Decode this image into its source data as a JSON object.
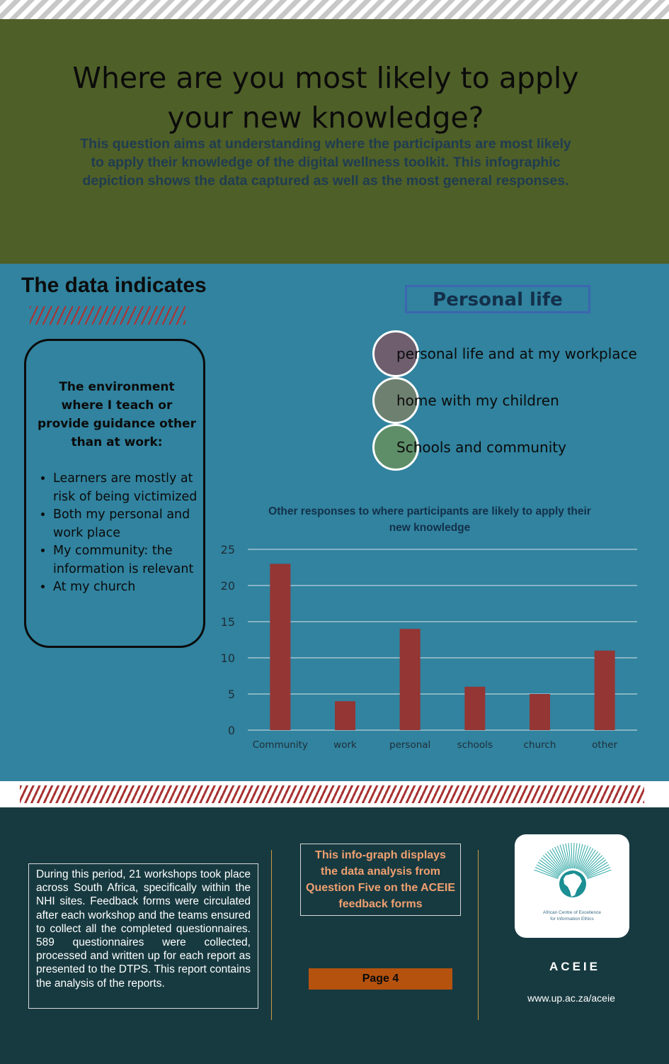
{
  "header": {
    "title": "Where are you most likely to apply your new knowledge?",
    "subtitle": "This question aims at understanding where the participants are most likely to apply their knowledge of the digital wellness toolkit. This infographic depiction shows the data captured as well as the most general responses."
  },
  "data_section": {
    "heading": "The data indicates",
    "box_heading": "The environment where I teach or provide guidance other than at work:",
    "box_items": [
      "Learners are mostly at risk of being victimized",
      "Both my personal and work place",
      "My community: the information is relevant",
      "At my church"
    ]
  },
  "personal_life": {
    "title": "Personal life",
    "items": [
      {
        "label": "personal life and at my workplace",
        "color": "#6e5e6e"
      },
      {
        "label": "home with my children",
        "color": "#6e8070"
      },
      {
        "label": "Schools and community",
        "color": "#5e8e68"
      }
    ]
  },
  "chart_data": {
    "type": "bar",
    "title": "Other responses to where participants are likely to apply their new knowledge",
    "categories": [
      "Community",
      "work",
      "personal",
      "schools",
      "church",
      "other"
    ],
    "values": [
      23,
      4,
      14,
      6,
      5,
      11
    ],
    "yticks": [
      "0",
      "5",
      "10",
      "15",
      "20",
      "25"
    ],
    "ylim": [
      0,
      25
    ],
    "bar_color": "#943634",
    "grid": true
  },
  "footer": {
    "description": "During this period, 21 workshops took place across South Africa, specifically within the NHI sites. Feedback forms were circulated after each workshop and the teams ensured to collect all the completed questionnaires. 589 questionnaires were collected, processed and written up for each report as presented to the DTPS. This report contains the analysis of the reports.",
    "info": "This info-graph displays the data analysis from Question Five on the ACEIE feedback forms",
    "page": "Page 4",
    "logo_caption_line1": "African Centre of Excellence",
    "logo_caption_line2": "for Information Ethics",
    "org": "ACEIE",
    "website": "www.up.ac.za/aceie"
  }
}
